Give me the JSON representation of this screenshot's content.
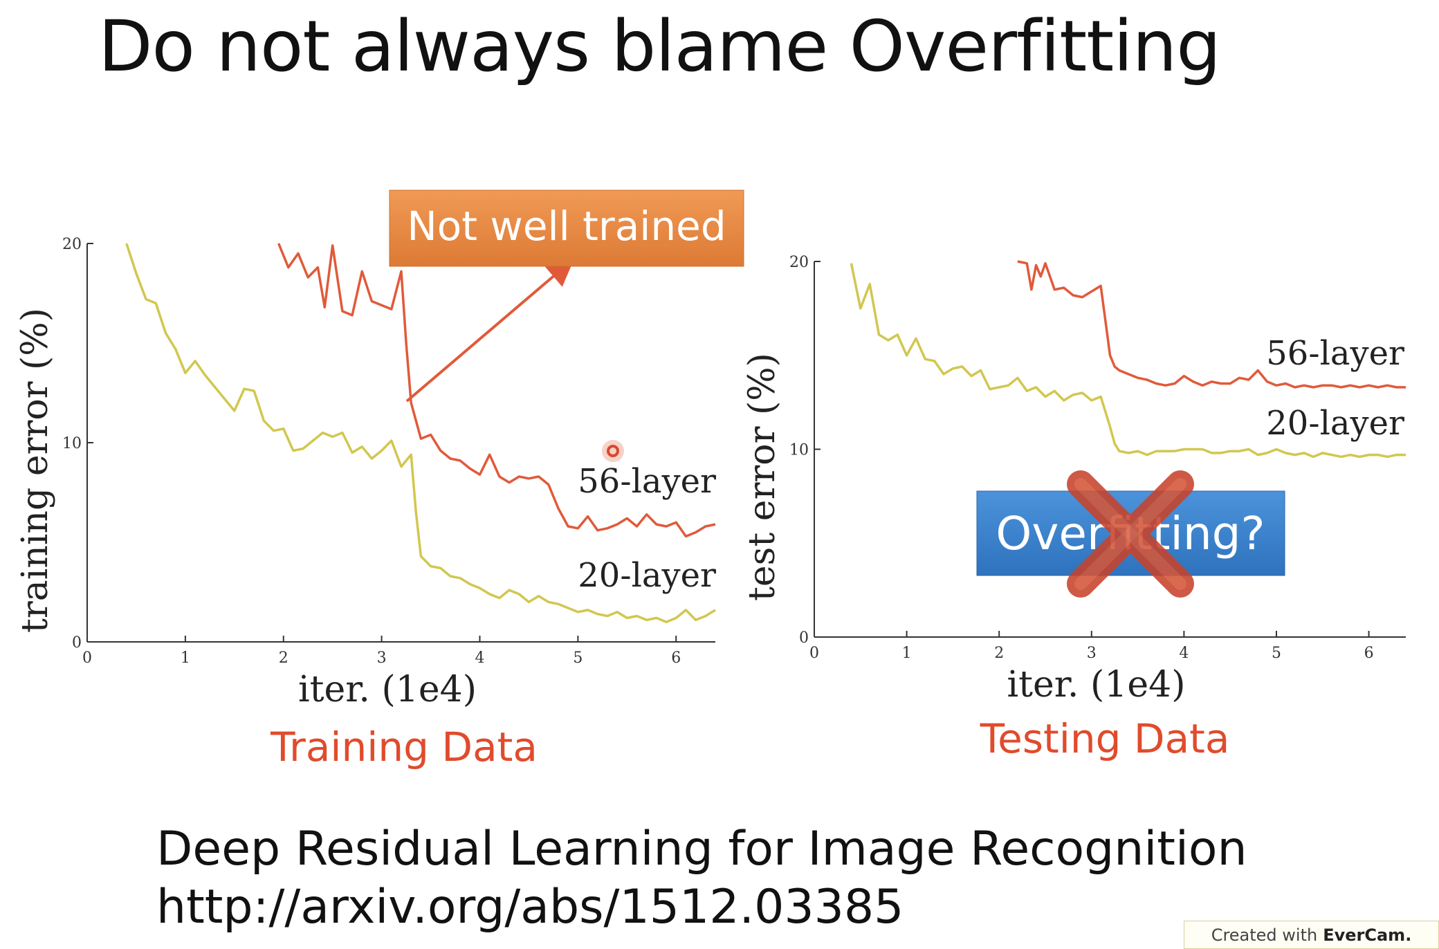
{
  "slide": {
    "title": "Do not always blame Overfitting",
    "reference_title": "Deep Residual Learning for Image Recognition",
    "reference_url": "http://arxiv.org/abs/1512.03385",
    "watermark_prefix": "Created with",
    "watermark_brand": "EverCam."
  },
  "colors": {
    "deep_series": "#e05a3a",
    "shallow_series": "#d1c74f",
    "caption": "#e04b2c",
    "orange_callout": "#e88a45",
    "blue_callout": "#3f86cf",
    "cross_mark": "#c8432b"
  },
  "annotations": {
    "left_callout": "Not well trained",
    "right_callout": "Overfitting?",
    "left_caption": "Training Data",
    "right_caption": "Testing Data",
    "icons": [
      "arrow-icon",
      "cross-icon",
      "cursor-dot-icon"
    ]
  },
  "chart_data": [
    {
      "type": "line",
      "xlabel": "iter. (1e4)",
      "ylabel": "training error (%)",
      "xlim": [
        0,
        6.4
      ],
      "ylim": [
        0,
        20
      ],
      "xticks": [
        "0",
        "1",
        "2",
        "3",
        "4",
        "5",
        "6"
      ],
      "yticks": [
        "0",
        "10",
        "20"
      ],
      "grid": false,
      "series": [
        {
          "name": "56-layer",
          "color": "#e05a3a",
          "x": [
            1.95,
            2.05,
            2.15,
            2.25,
            2.35,
            2.42,
            2.5,
            2.6,
            2.7,
            2.8,
            2.9,
            3.0,
            3.1,
            3.2,
            3.25,
            3.3,
            3.4,
            3.5,
            3.6,
            3.7,
            3.8,
            3.9,
            4.0,
            4.1,
            4.2,
            4.3,
            4.4,
            4.5,
            4.6,
            4.7,
            4.8,
            4.9,
            5.0,
            5.1,
            5.2,
            5.3,
            5.4,
            5.5,
            5.6,
            5.7,
            5.8,
            5.9,
            6.0,
            6.1,
            6.2,
            6.3,
            6.4
          ],
          "y": [
            20,
            18.8,
            19.5,
            18.3,
            18.8,
            16.8,
            19.9,
            16.6,
            16.4,
            18.6,
            17.1,
            16.9,
            16.7,
            18.6,
            15.0,
            12.0,
            10.2,
            10.4,
            9.6,
            9.2,
            9.1,
            8.7,
            8.4,
            9.4,
            8.3,
            8.0,
            8.3,
            8.2,
            8.3,
            7.9,
            6.7,
            5.8,
            5.7,
            6.3,
            5.6,
            5.7,
            5.9,
            6.2,
            5.8,
            6.4,
            5.9,
            5.8,
            6.0,
            5.3,
            5.5,
            5.8,
            5.9
          ]
        },
        {
          "name": "20-layer",
          "color": "#d1c74f",
          "x": [
            0.4,
            0.5,
            0.6,
            0.7,
            0.8,
            0.9,
            1.0,
            1.1,
            1.2,
            1.3,
            1.4,
            1.5,
            1.6,
            1.7,
            1.8,
            1.9,
            2.0,
            2.1,
            2.2,
            2.3,
            2.4,
            2.5,
            2.6,
            2.7,
            2.8,
            2.9,
            3.0,
            3.1,
            3.2,
            3.3,
            3.35,
            3.4,
            3.5,
            3.6,
            3.7,
            3.8,
            3.9,
            4.0,
            4.1,
            4.2,
            4.3,
            4.4,
            4.5,
            4.6,
            4.7,
            4.8,
            4.9,
            5.0,
            5.1,
            5.2,
            5.3,
            5.4,
            5.5,
            5.6,
            5.7,
            5.8,
            5.9,
            6.0,
            6.1,
            6.2,
            6.3,
            6.4
          ],
          "y": [
            20,
            18.5,
            17.2,
            17.0,
            15.5,
            14.7,
            13.5,
            14.1,
            13.4,
            12.8,
            12.2,
            11.6,
            12.7,
            12.6,
            11.1,
            10.6,
            10.7,
            9.6,
            9.7,
            10.1,
            10.5,
            10.3,
            10.5,
            9.5,
            9.8,
            9.2,
            9.6,
            10.1,
            8.8,
            9.4,
            6.5,
            4.3,
            3.8,
            3.7,
            3.3,
            3.2,
            2.9,
            2.7,
            2.4,
            2.2,
            2.6,
            2.4,
            2.0,
            2.3,
            2.0,
            1.9,
            1.7,
            1.5,
            1.6,
            1.4,
            1.3,
            1.5,
            1.2,
            1.3,
            1.1,
            1.2,
            1.0,
            1.2,
            1.6,
            1.1,
            1.3,
            1.6
          ]
        }
      ]
    },
    {
      "type": "line",
      "xlabel": "iter. (1e4)",
      "ylabel": "test error (%)",
      "xlim": [
        0,
        6.4
      ],
      "ylim": [
        0,
        20
      ],
      "xticks": [
        "0",
        "1",
        "2",
        "3",
        "4",
        "5",
        "6"
      ],
      "yticks": [
        "0",
        "10",
        "20"
      ],
      "grid": false,
      "series": [
        {
          "name": "56-layer",
          "color": "#e05a3a",
          "x": [
            2.2,
            2.3,
            2.35,
            2.4,
            2.45,
            2.5,
            2.6,
            2.7,
            2.8,
            2.9,
            3.0,
            3.1,
            3.2,
            3.25,
            3.3,
            3.4,
            3.5,
            3.6,
            3.7,
            3.8,
            3.9,
            4.0,
            4.1,
            4.2,
            4.3,
            4.4,
            4.5,
            4.6,
            4.7,
            4.8,
            4.9,
            5.0,
            5.1,
            5.2,
            5.3,
            5.4,
            5.5,
            5.6,
            5.7,
            5.8,
            5.9,
            6.0,
            6.1,
            6.2,
            6.3,
            6.4
          ],
          "y": [
            20,
            19.9,
            18.5,
            19.8,
            19.2,
            19.9,
            18.5,
            18.6,
            18.2,
            18.1,
            18.4,
            18.7,
            15.0,
            14.4,
            14.2,
            14.0,
            13.8,
            13.7,
            13.5,
            13.4,
            13.5,
            13.9,
            13.6,
            13.4,
            13.6,
            13.5,
            13.5,
            13.8,
            13.7,
            14.2,
            13.6,
            13.4,
            13.5,
            13.3,
            13.4,
            13.3,
            13.4,
            13.4,
            13.3,
            13.4,
            13.3,
            13.4,
            13.3,
            13.4,
            13.3,
            13.3
          ]
        },
        {
          "name": "20-layer",
          "color": "#d1c74f",
          "x": [
            0.4,
            0.5,
            0.6,
            0.7,
            0.8,
            0.9,
            1.0,
            1.1,
            1.2,
            1.3,
            1.4,
            1.5,
            1.6,
            1.7,
            1.8,
            1.9,
            2.0,
            2.1,
            2.2,
            2.3,
            2.4,
            2.5,
            2.6,
            2.7,
            2.8,
            2.9,
            3.0,
            3.1,
            3.2,
            3.25,
            3.3,
            3.4,
            3.5,
            3.6,
            3.7,
            3.8,
            3.9,
            4.0,
            4.1,
            4.2,
            4.3,
            4.4,
            4.5,
            4.6,
            4.7,
            4.8,
            4.9,
            5.0,
            5.1,
            5.2,
            5.3,
            5.4,
            5.5,
            5.6,
            5.7,
            5.8,
            5.9,
            6.0,
            6.1,
            6.2,
            6.3,
            6.4
          ],
          "y": [
            19.9,
            17.5,
            18.8,
            16.1,
            15.8,
            16.1,
            15.0,
            15.9,
            14.8,
            14.7,
            14.0,
            14.3,
            14.4,
            13.9,
            14.2,
            13.2,
            13.3,
            13.4,
            13.8,
            13.1,
            13.3,
            12.8,
            13.1,
            12.6,
            12.9,
            13.0,
            12.6,
            12.8,
            11.2,
            10.3,
            9.9,
            9.8,
            9.9,
            9.7,
            9.9,
            9.9,
            9.9,
            10.0,
            10.0,
            10.0,
            9.8,
            9.8,
            9.9,
            9.9,
            10.0,
            9.7,
            9.8,
            10.0,
            9.8,
            9.7,
            9.8,
            9.6,
            9.8,
            9.7,
            9.6,
            9.7,
            9.6,
            9.7,
            9.7,
            9.6,
            9.7,
            9.7
          ]
        }
      ]
    }
  ]
}
